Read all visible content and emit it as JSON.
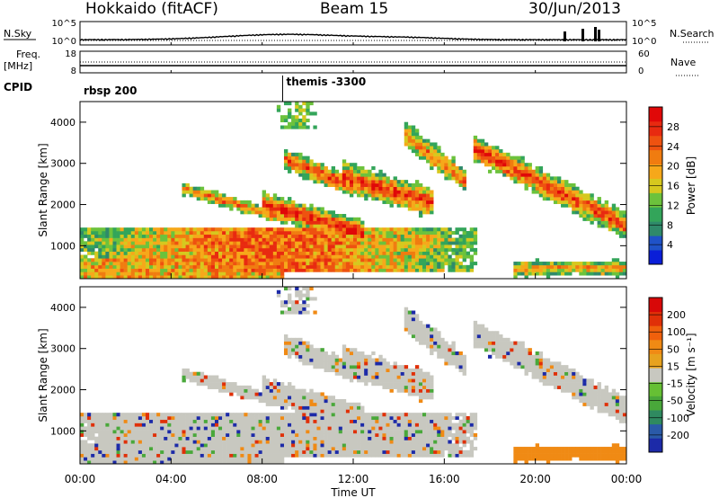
{
  "header": {
    "station": "Hokkaido (fitACF)",
    "beam": "Beam 15",
    "date": "30/Jun/2013"
  },
  "chart_data": {
    "type": "heatmap",
    "x_ticks": [
      "00:00",
      "04:00",
      "08:00",
      "12:00",
      "16:00",
      "20:00",
      "00:00"
    ],
    "x_range_hours": [
      0,
      24
    ],
    "xlabel": "Time UT",
    "strips": {
      "nsky": {
        "label": "N.Sky",
        "left_ticks": [
          "10^5",
          "10^0"
        ],
        "right_label": "N.Search",
        "right_ticks": [
          "10^5",
          "10^0"
        ]
      },
      "freq": {
        "label_top": "Freq.",
        "label_bottom": "[MHz]",
        "left_ticks": [
          "18",
          "8"
        ],
        "right_label": "Nave",
        "right_ticks": [
          "60",
          "0"
        ]
      },
      "cpid": {
        "label": "CPID",
        "segments": [
          {
            "start_hour": 0,
            "end_hour": 8.9,
            "name": "rbsp 200"
          },
          {
            "start_hour": 8.9,
            "end_hour": 24,
            "name": "themis -3300"
          }
        ]
      }
    },
    "power_panel": {
      "ylabel": "Slant Range [km]",
      "y_ticks": [
        1000,
        2000,
        3000,
        4000
      ],
      "ylim": [
        200,
        4500
      ],
      "colorbar": {
        "label": "Power [dB]",
        "ticks": [
          4,
          8,
          12,
          16,
          20,
          24,
          28
        ],
        "colors": [
          "#0a1ed8",
          "#1f52c8",
          "#2f8a6a",
          "#33a55a",
          "#6cc23c",
          "#d6c81e",
          "#f6a81a",
          "#f07c10",
          "#ee5210",
          "#e82a10",
          "#e00808"
        ]
      }
    },
    "velocity_panel": {
      "ylabel": "Slant Range [km]",
      "y_ticks": [
        1000,
        2000,
        3000,
        4000
      ],
      "ylim": [
        200,
        4500
      ],
      "colorbar": {
        "label": "Velocity [m s⁻¹]",
        "ticks": [
          200,
          100,
          50,
          15,
          -15,
          -50,
          -100,
          -200
        ],
        "colors": [
          "#1c2aa8",
          "#2a5aa8",
          "#2f8a60",
          "#49a83a",
          "#66c034",
          "#c8c8c0",
          "#e7a21e",
          "#f08a14",
          "#f0600c",
          "#e03008",
          "#d80808"
        ]
      }
    }
  }
}
